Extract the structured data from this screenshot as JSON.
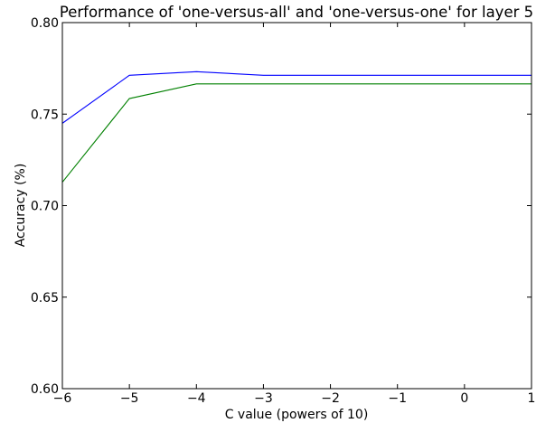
{
  "chart_data": {
    "type": "line",
    "title": "Performance of 'one-versus-all' and 'one-versus-one' for layer 5",
    "xlabel": "C value (powers of 10)",
    "ylabel": "Accuracy (%)",
    "xlim": [
      -6,
      1
    ],
    "ylim": [
      0.6,
      0.8
    ],
    "grid": false,
    "x": [
      -6,
      -5,
      -4,
      -3,
      -2,
      -1,
      0,
      1
    ],
    "x_ticks": [
      -6,
      -5,
      -4,
      -3,
      -2,
      -1,
      0,
      1
    ],
    "x_tick_labels": [
      "−6",
      "−5",
      "−4",
      "−3",
      "−2",
      "−1",
      "0",
      "1"
    ],
    "y_ticks": [
      0.6,
      0.65,
      0.7,
      0.75,
      0.8
    ],
    "y_tick_labels": [
      "0.60",
      "0.65",
      "0.70",
      "0.75",
      "0.80"
    ],
    "series": [
      {
        "color": "#0000ff",
        "values": [
          0.745,
          0.7712,
          0.7732,
          0.7712,
          0.7712,
          0.7712,
          0.7712,
          0.7712
        ]
      },
      {
        "color": "#008000",
        "values": [
          0.7128,
          0.7585,
          0.7665,
          0.7665,
          0.7665,
          0.7665,
          0.7665,
          0.7665
        ]
      }
    ]
  }
}
